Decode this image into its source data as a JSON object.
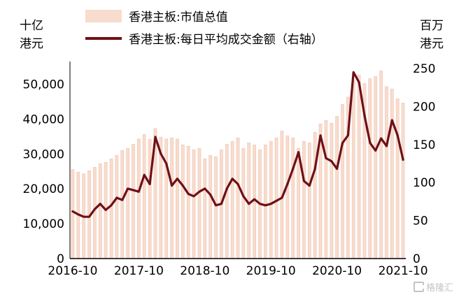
{
  "chart_data": {
    "type": "combo (bar + line)",
    "title": "",
    "legend": [
      {
        "label": "香港主板:市值总值",
        "type": "bar",
        "color": "#f8dcce"
      },
      {
        "label": "香港主板:每日平均成交金额（右轴）",
        "type": "line",
        "color": "#700f16"
      }
    ],
    "left_axis": {
      "unit": "十亿港元",
      "ticks": [
        "0",
        "10,000",
        "20,000",
        "30,000",
        "40,000",
        "50,000"
      ],
      "tick_values": [
        0,
        10000,
        20000,
        30000,
        40000,
        50000
      ],
      "max_visual": 54500
    },
    "right_axis": {
      "unit": "百万港元",
      "ticks": [
        "0",
        "50",
        "100",
        "150",
        "200",
        "250"
      ],
      "tick_values": [
        0,
        50,
        100,
        150,
        200,
        250
      ],
      "max_visual": 250
    },
    "x_axis": {
      "tick_labels": [
        "2016-10",
        "2017-10",
        "2018-10",
        "2019-10",
        "2020-10",
        "2021-10"
      ],
      "tick_positions": [
        0,
        12,
        24,
        36,
        48,
        60
      ]
    },
    "x": [
      "2016-10",
      "2016-11",
      "2016-12",
      "2017-01",
      "2017-02",
      "2017-03",
      "2017-04",
      "2017-05",
      "2017-06",
      "2017-07",
      "2017-08",
      "2017-09",
      "2017-10",
      "2017-11",
      "2017-12",
      "2018-01",
      "2018-02",
      "2018-03",
      "2018-04",
      "2018-05",
      "2018-06",
      "2018-07",
      "2018-08",
      "2018-09",
      "2018-10",
      "2018-11",
      "2018-12",
      "2019-01",
      "2019-02",
      "2019-03",
      "2019-04",
      "2019-05",
      "2019-06",
      "2019-07",
      "2019-08",
      "2019-09",
      "2019-10",
      "2019-11",
      "2019-12",
      "2020-01",
      "2020-02",
      "2020-03",
      "2020-04",
      "2020-05",
      "2020-06",
      "2020-07",
      "2020-08",
      "2020-09",
      "2020-10",
      "2020-11",
      "2020-12",
      "2021-01",
      "2021-02",
      "2021-03",
      "2021-04",
      "2021-05",
      "2021-06",
      "2021-07",
      "2021-08",
      "2021-09",
      "2021-10"
    ],
    "bars": {
      "name": "香港主板:市值总值",
      "stroke": "#eec4b0",
      "values": [
        25500,
        24800,
        24300,
        25200,
        26200,
        27200,
        27600,
        28600,
        29600,
        31000,
        31600,
        32800,
        34300,
        35600,
        34200,
        37300,
        34800,
        34300,
        34600,
        34300,
        32600,
        32200,
        31200,
        31600,
        28600,
        29600,
        29200,
        31200,
        32800,
        33600,
        34600,
        31600,
        33200,
        32600,
        31200,
        32600,
        33600,
        34600,
        36600,
        35200,
        34600,
        31600,
        33600,
        33200,
        36200,
        38600,
        39600,
        38800,
        40800,
        44200,
        46300,
        51200,
        52600,
        50200,
        51600,
        52200,
        53800,
        49300,
        48600,
        45800,
        44600
      ]
    },
    "line": {
      "name": "香港主板:每日平均成交金额（右轴）",
      "values": [
        62,
        58,
        55,
        55,
        65,
        72,
        64,
        70,
        80,
        77,
        92,
        90,
        88,
        110,
        98,
        160,
        138,
        125,
        96,
        105,
        96,
        85,
        82,
        88,
        92,
        84,
        70,
        72,
        92,
        105,
        98,
        82,
        72,
        78,
        72,
        70,
        72,
        76,
        80,
        98,
        118,
        140,
        102,
        96,
        118,
        162,
        132,
        128,
        118,
        152,
        162,
        245,
        232,
        188,
        152,
        142,
        158,
        148,
        182,
        162,
        130
      ]
    },
    "watermark": "格隆汇"
  }
}
